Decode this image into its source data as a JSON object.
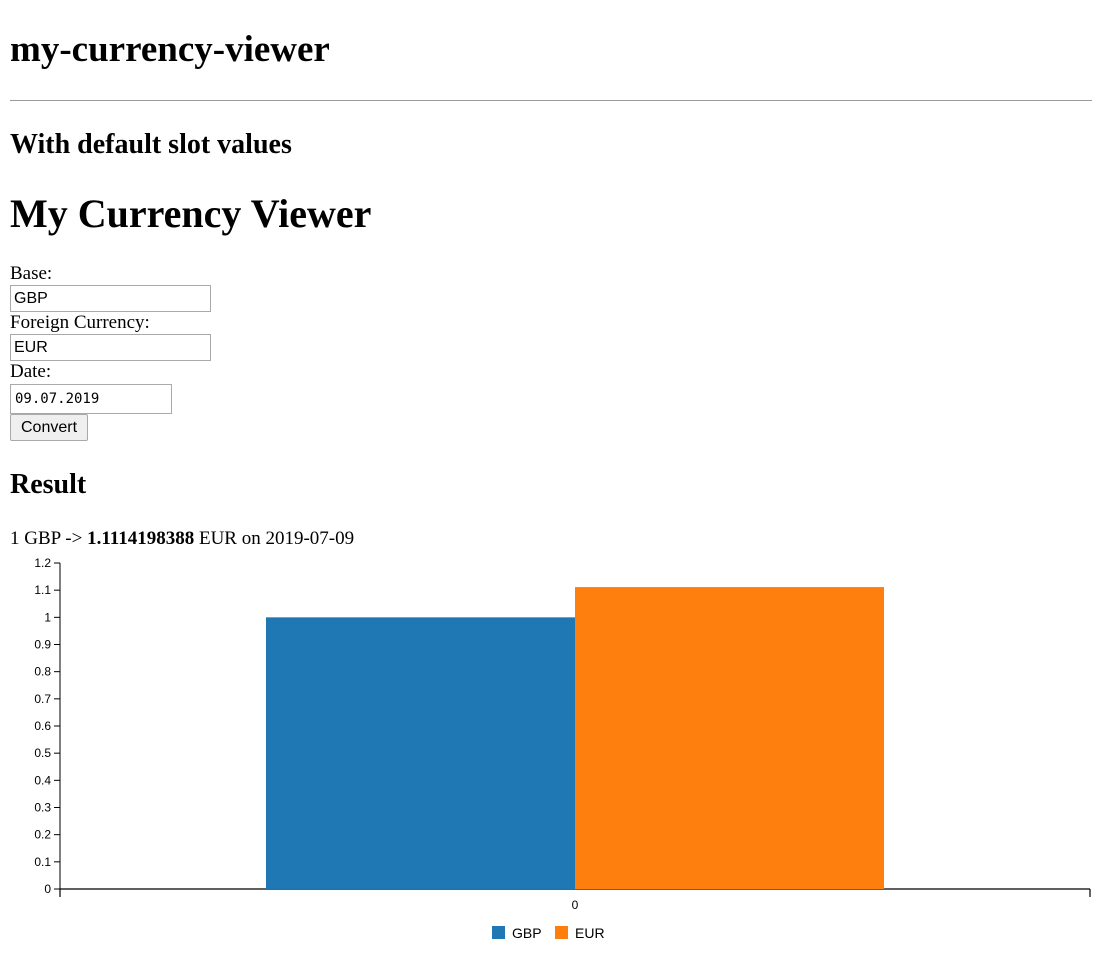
{
  "app_title": "my-currency-viewer",
  "section_title": "With default slot values",
  "viewer_title": "My Currency Viewer",
  "form": {
    "base_label": "Base:",
    "base_value": "GBP",
    "foreign_label": "Foreign Currency:",
    "foreign_value": "EUR",
    "date_label": "Date:",
    "date_value": "09.07.2019",
    "convert_label": "Convert"
  },
  "result": {
    "title": "Result",
    "prefix": "1 GBP -> ",
    "rate": "1.1114198388",
    "suffix": " EUR on 2019-07-09"
  },
  "chart_data": {
    "type": "bar",
    "categories": [
      "0"
    ],
    "series": [
      {
        "name": "GBP",
        "values": [
          1
        ],
        "color": "#1f77b4"
      },
      {
        "name": "EUR",
        "values": [
          1.1114198388
        ],
        "color": "#ff7f0e"
      }
    ],
    "ylim": [
      0,
      1.2
    ],
    "yticks": [
      "0",
      "0.1",
      "0.2",
      "0.3",
      "0.4",
      "0.5",
      "0.6",
      "0.7",
      "0.8",
      "0.9",
      "1",
      "1.1",
      "1.2"
    ],
    "legend": "bottom-center",
    "grid": false
  }
}
